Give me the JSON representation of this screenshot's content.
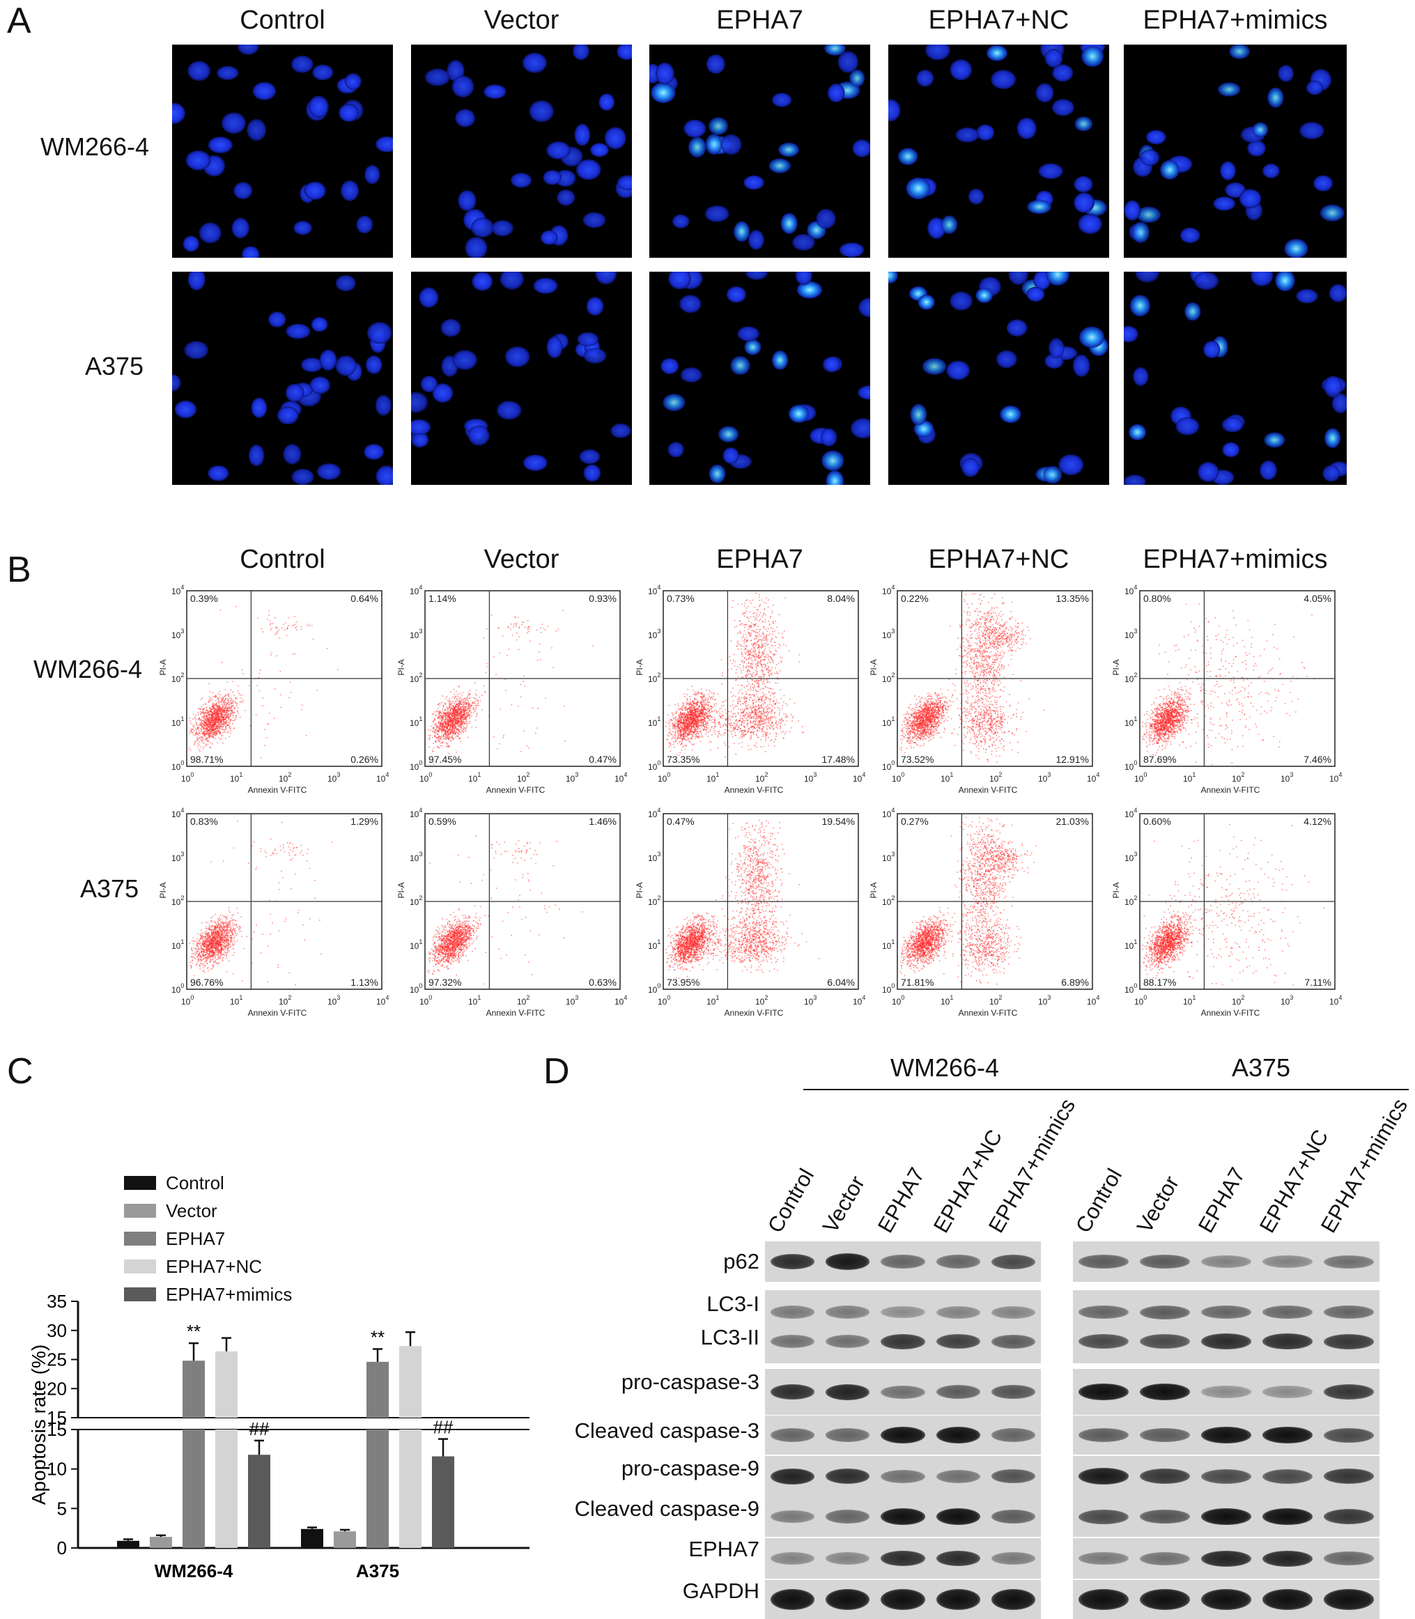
{
  "panels": {
    "A": {
      "letter": "A"
    },
    "B": {
      "letter": "B"
    },
    "C": {
      "letter": "C"
    },
    "D": {
      "letter": "D"
    }
  },
  "groups": [
    "Control",
    "Vector",
    "EPHA7",
    "EPHA7+NC",
    "EPHA7+mimics"
  ],
  "cell_lines": [
    "WM266-4",
    "A375"
  ],
  "flow": {
    "xlabel": "Annexin V-FITC",
    "ylabel": "PI-A",
    "ticks": [
      "10",
      "10",
      "10",
      "10",
      "10"
    ],
    "tick_exp": [
      "0",
      "1",
      "2",
      "3",
      "4"
    ],
    "quadrants": [
      [
        {
          "ul": "0.39%",
          "ur": "0.64%",
          "ll": "98.71%",
          "lr": "0.26%"
        },
        {
          "ul": "1.14%",
          "ur": "0.93%",
          "ll": "97.45%",
          "lr": "0.47%"
        },
        {
          "ul": "0.73%",
          "ur": "8.04%",
          "ll": "73.35%",
          "lr": "17.48%"
        },
        {
          "ul": "0.22%",
          "ur": "13.35%",
          "ll": "73.52%",
          "lr": "12.91%"
        },
        {
          "ul": "0.80%",
          "ur": "4.05%",
          "ll": "87.69%",
          "lr": "7.46%"
        }
      ],
      [
        {
          "ul": "0.83%",
          "ur": "1.29%",
          "ll": "96.76%",
          "lr": "1.13%"
        },
        {
          "ul": "0.59%",
          "ur": "1.46%",
          "ll": "97.32%",
          "lr": "0.63%"
        },
        {
          "ul": "0.47%",
          "ur": "19.54%",
          "ll": "73.95%",
          "lr": "6.04%"
        },
        {
          "ul": "0.27%",
          "ur": "21.03%",
          "ll": "71.81%",
          "lr": "6.89%"
        },
        {
          "ul": "0.60%",
          "ur": "4.12%",
          "ll": "88.17%",
          "lr": "7.11%"
        }
      ]
    ]
  },
  "chart_data": {
    "type": "bar",
    "categories": [
      "WM266-4",
      "A375"
    ],
    "ylabel": "Apoptosis rate (%)",
    "axis_break": [
      15,
      15
    ],
    "ylim_lower": [
      0,
      15
    ],
    "ylim_upper": [
      15,
      35
    ],
    "yticks_lower": [
      "0",
      "5",
      "10",
      "15"
    ],
    "yticks_upper": [
      "15",
      "20",
      "25",
      "30",
      "35"
    ],
    "series": [
      {
        "name": "Control",
        "color": "#111111",
        "values": [
          0.9,
          2.4
        ],
        "errors": [
          0.2,
          0.2
        ]
      },
      {
        "name": "Vector",
        "color": "#9a9a9a",
        "values": [
          1.4,
          2.1
        ],
        "errors": [
          0.2,
          0.2
        ]
      },
      {
        "name": "EPHA7",
        "color": "#7f7f7f",
        "values": [
          24.8,
          24.6
        ],
        "errors": [
          3.0,
          2.2
        ]
      },
      {
        "name": "EPHA7+NC",
        "color": "#d4d4d4",
        "values": [
          26.4,
          27.3
        ],
        "errors": [
          2.3,
          2.4
        ]
      },
      {
        "name": "EPHA7+mimics",
        "color": "#5a5a5a",
        "values": [
          11.8,
          11.6
        ],
        "errors": [
          1.8,
          2.2
        ]
      }
    ],
    "annotations": [
      {
        "category": "WM266-4",
        "series": "EPHA7",
        "text": "**"
      },
      {
        "category": "WM266-4",
        "series": "EPHA7+mimics",
        "text": "##"
      },
      {
        "category": "A375",
        "series": "EPHA7",
        "text": "**"
      },
      {
        "category": "A375",
        "series": "EPHA7+mimics",
        "text": "##"
      }
    ]
  },
  "western": {
    "headers": [
      "WM266-4",
      "A375"
    ],
    "lanes": [
      "Control",
      "Vector",
      "EPHA7",
      "EPHA7+NC",
      "EPHA7+mimics"
    ],
    "proteins": [
      "p62",
      "LC3-I",
      "LC3-II",
      "pro-caspase-3",
      "Cleaved  caspase-3",
      "pro-caspase-9",
      "Cleaved  caspase-9",
      "EPHA7",
      "GAPDH"
    ],
    "intensity": {
      "p62": [
        [
          0.85,
          0.95,
          0.55,
          0.55,
          0.7
        ],
        [
          0.6,
          0.6,
          0.4,
          0.4,
          0.5
        ]
      ],
      "LC3-I": [
        [
          0.45,
          0.45,
          0.35,
          0.4,
          0.4
        ],
        [
          0.55,
          0.6,
          0.55,
          0.55,
          0.55
        ]
      ],
      "LC3-II": [
        [
          0.5,
          0.5,
          0.8,
          0.75,
          0.6
        ],
        [
          0.7,
          0.7,
          0.85,
          0.85,
          0.8
        ]
      ],
      "pro-caspase-3": [
        [
          0.85,
          0.9,
          0.5,
          0.6,
          0.65
        ],
        [
          1.0,
          1.0,
          0.35,
          0.35,
          0.8
        ]
      ],
      "Cleaved  caspase-3": [
        [
          0.55,
          0.55,
          1.0,
          1.0,
          0.55
        ],
        [
          0.6,
          0.6,
          1.0,
          1.0,
          0.7
        ]
      ],
      "pro-caspase-9": [
        [
          0.9,
          0.85,
          0.5,
          0.5,
          0.65
        ],
        [
          0.95,
          0.8,
          0.7,
          0.7,
          0.8
        ]
      ],
      "Cleaved  caspase-9": [
        [
          0.45,
          0.55,
          1.0,
          1.0,
          0.6
        ],
        [
          0.7,
          0.65,
          1.0,
          1.0,
          0.8
        ]
      ],
      "EPHA7": [
        [
          0.4,
          0.4,
          0.85,
          0.85,
          0.45
        ],
        [
          0.45,
          0.5,
          0.9,
          0.9,
          0.55
        ]
      ],
      "GAPDH": [
        [
          1.0,
          1.0,
          1.0,
          1.0,
          1.0
        ],
        [
          1.0,
          1.0,
          1.0,
          1.0,
          1.0
        ]
      ]
    }
  }
}
